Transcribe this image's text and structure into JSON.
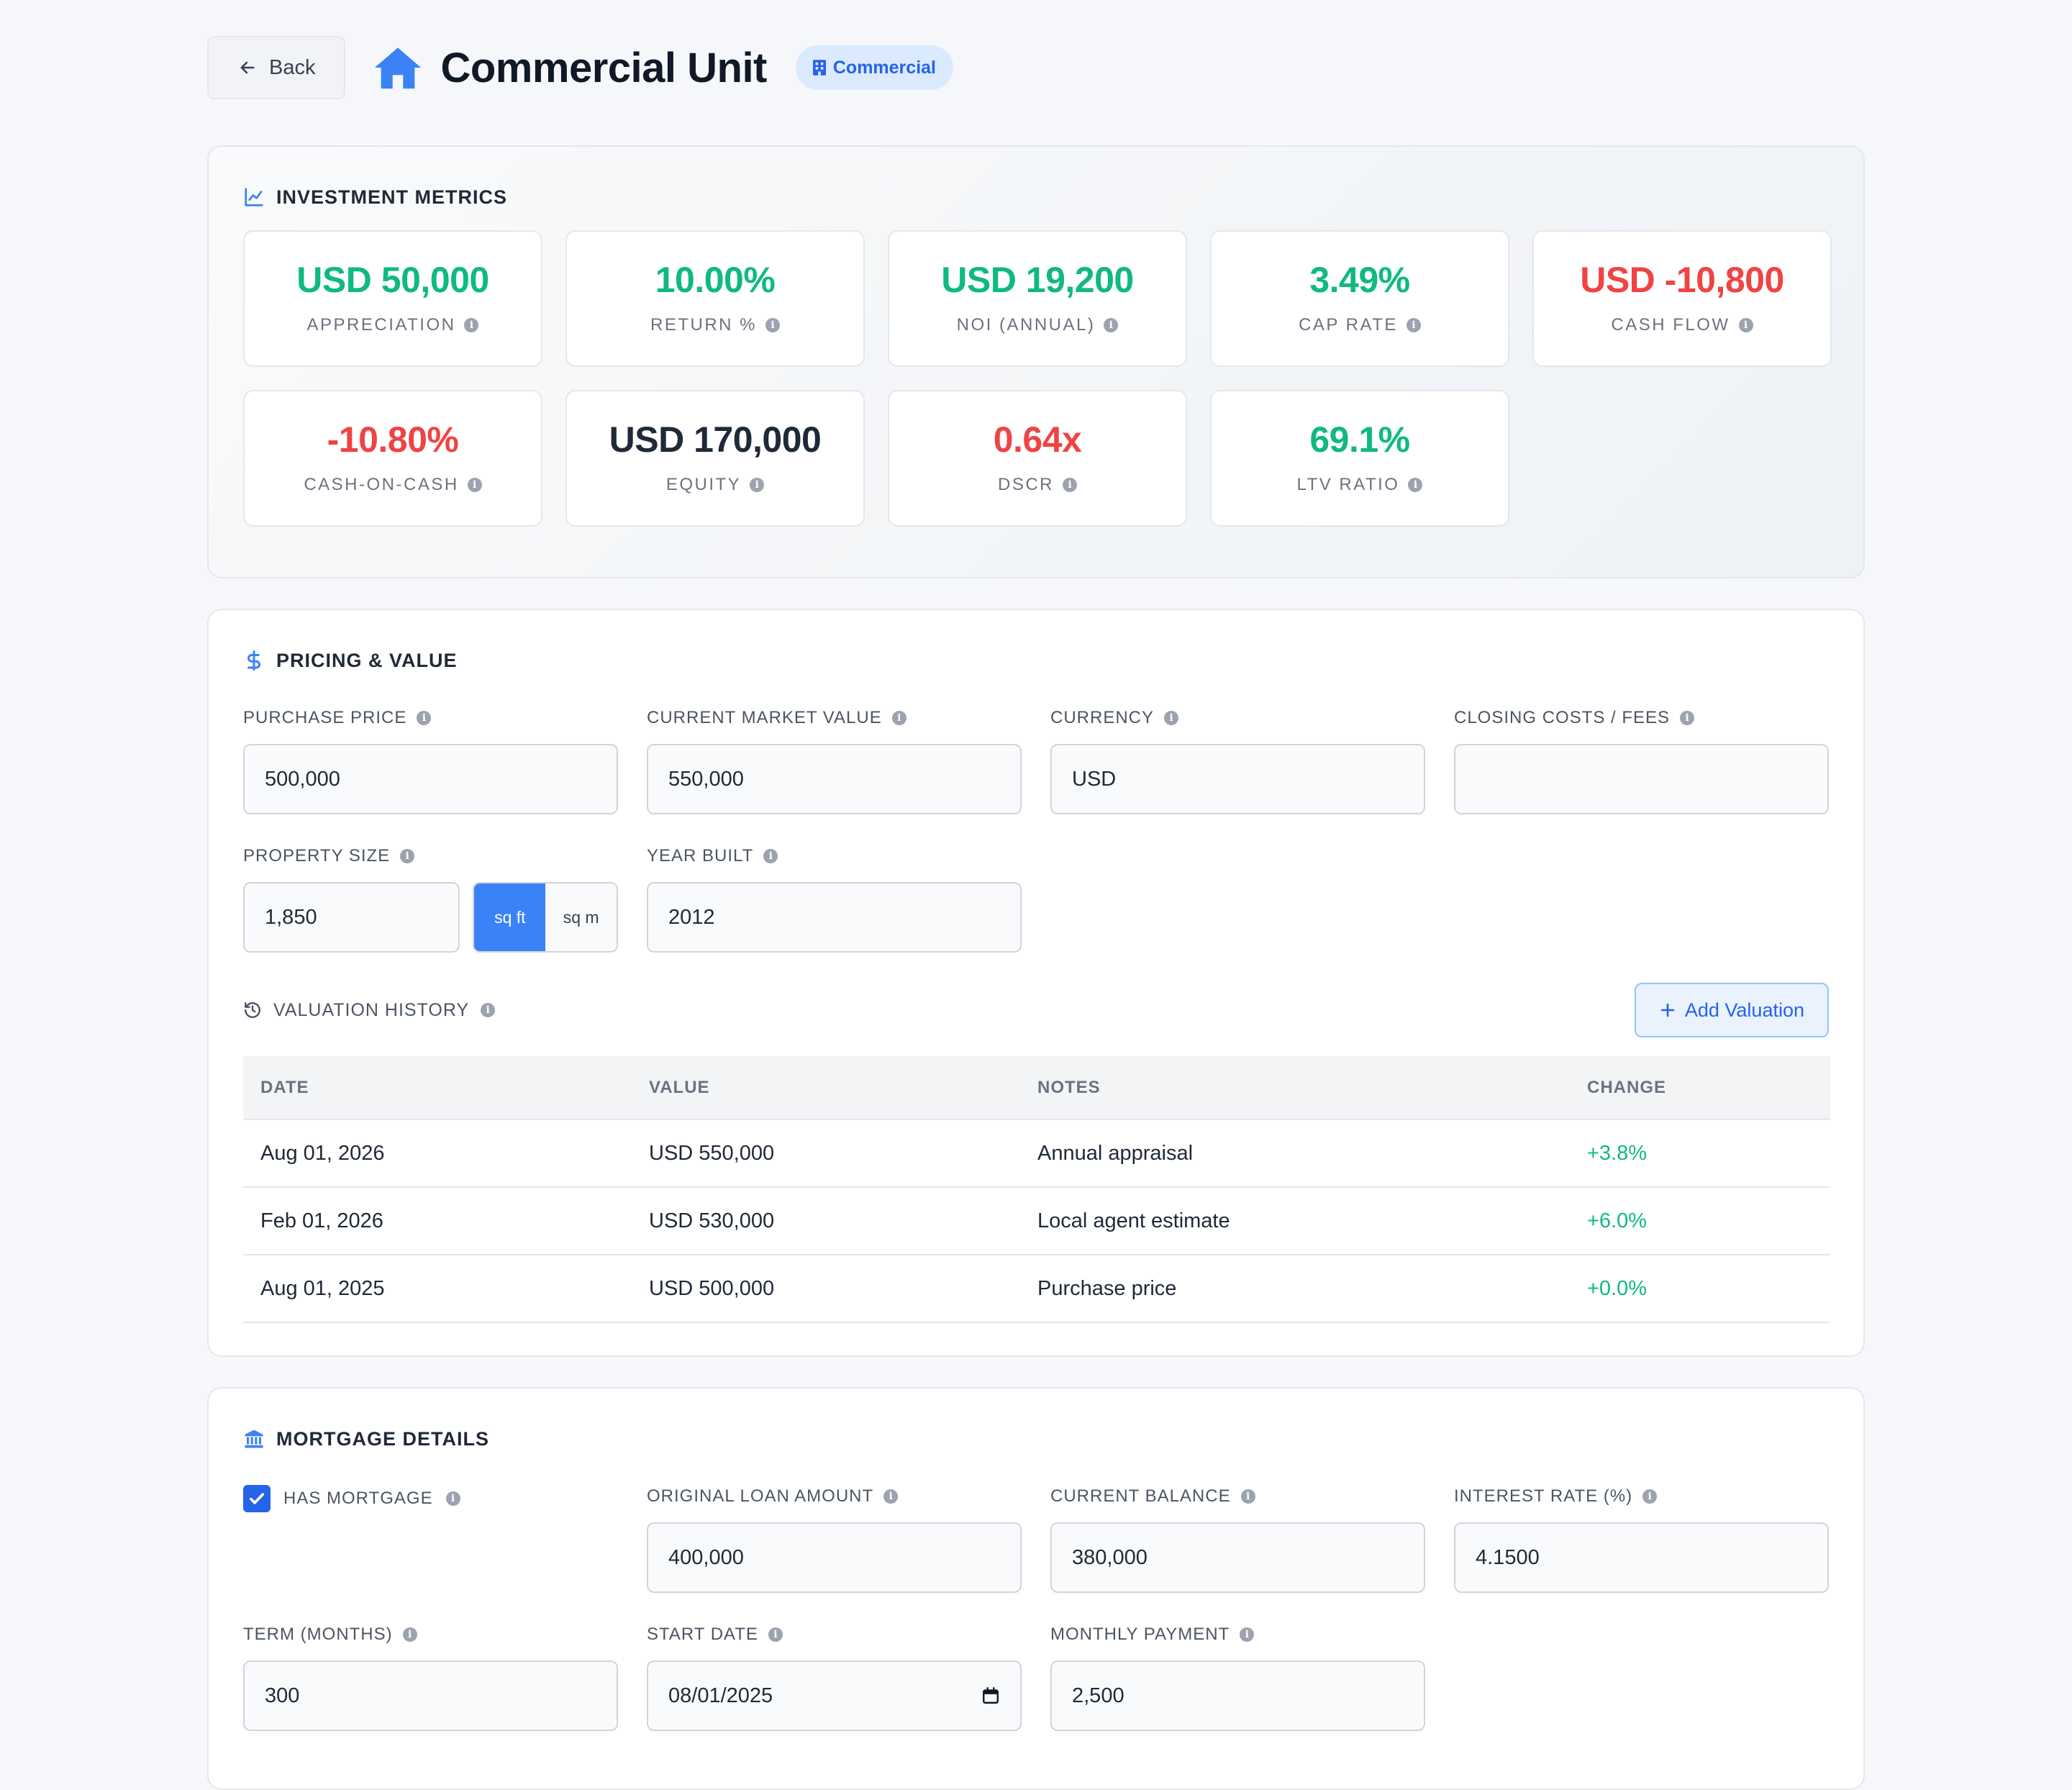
{
  "header": {
    "back_label": "Back",
    "title": "Commercial Unit",
    "badge": "Commercial"
  },
  "metrics": {
    "title": "INVESTMENT METRICS",
    "items": [
      {
        "value": "USD 50,000",
        "label": "APPRECIATION",
        "tone": "pos"
      },
      {
        "value": "10.00%",
        "label": "RETURN %",
        "tone": "pos"
      },
      {
        "value": "USD 19,200",
        "label": "NOI (ANNUAL)",
        "tone": "pos"
      },
      {
        "value": "3.49%",
        "label": "CAP RATE",
        "tone": "pos"
      },
      {
        "value": "USD -10,800",
        "label": "CASH FLOW",
        "tone": "neg"
      },
      {
        "value": "-10.80%",
        "label": "CASH-ON-CASH",
        "tone": "neg"
      },
      {
        "value": "USD 170,000",
        "label": "EQUITY",
        "tone": "neu"
      },
      {
        "value": "0.64x",
        "label": "DSCR",
        "tone": "neg"
      },
      {
        "value": "69.1%",
        "label": "LTV RATIO",
        "tone": "pos"
      }
    ]
  },
  "pricing": {
    "title": "PRICING & VALUE",
    "purchase_price": {
      "label": "PURCHASE PRICE",
      "value": "500,000"
    },
    "market_value": {
      "label": "CURRENT MARKET VALUE",
      "value": "550,000"
    },
    "currency": {
      "label": "CURRENCY",
      "value": "USD"
    },
    "closing_costs": {
      "label": "CLOSING COSTS / FEES",
      "value": ""
    },
    "property_size": {
      "label": "PROPERTY SIZE",
      "value": "1,850",
      "unit_sqft": "sq ft",
      "unit_sqm": "sq m",
      "selected_unit": "sq ft"
    },
    "year_built": {
      "label": "YEAR BUILT",
      "value": "2012"
    },
    "valuation_history": {
      "title": "VALUATION HISTORY",
      "add_label": "Add Valuation",
      "columns": [
        "DATE",
        "VALUE",
        "NOTES",
        "CHANGE"
      ],
      "rows": [
        {
          "date": "Aug 01, 2026",
          "value": "USD 550,000",
          "notes": "Annual appraisal",
          "change": "+3.8%"
        },
        {
          "date": "Feb 01, 2026",
          "value": "USD 530,000",
          "notes": "Local agent estimate",
          "change": "+6.0%"
        },
        {
          "date": "Aug 01, 2025",
          "value": "USD 500,000",
          "notes": "Purchase price",
          "change": "+0.0%"
        }
      ]
    }
  },
  "mortgage": {
    "title": "MORTGAGE DETAILS",
    "has_mortgage": {
      "label": "HAS MORTGAGE",
      "checked": true
    },
    "original_loan": {
      "label": "ORIGINAL LOAN AMOUNT",
      "value": "400,000"
    },
    "current_balance": {
      "label": "CURRENT BALANCE",
      "value": "380,000"
    },
    "interest_rate": {
      "label": "INTEREST RATE (%)",
      "value": "4.1500"
    },
    "term": {
      "label": "TERM (MONTHS)",
      "value": "300"
    },
    "start_date": {
      "label": "START DATE",
      "value": "08/01/2025"
    },
    "monthly_payment": {
      "label": "MONTHLY PAYMENT",
      "value": "2,500"
    }
  },
  "colors": {
    "accent": "#3b82f6",
    "positive": "#10b981",
    "negative": "#ef4444"
  }
}
